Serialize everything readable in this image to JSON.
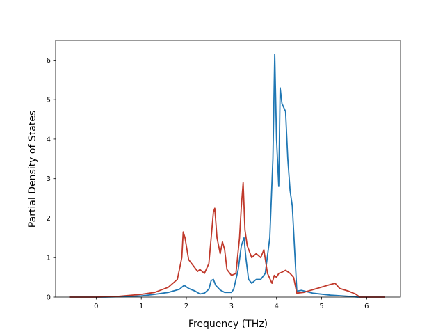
{
  "chart_data": {
    "type": "line",
    "title": "",
    "xlabel": "Frequency (THz)",
    "ylabel": "Partial Density of States",
    "xlim": [
      -0.9,
      6.75
    ],
    "ylim": [
      0,
      6.5
    ],
    "xticks": [
      0,
      1,
      2,
      3,
      4,
      5,
      6
    ],
    "yticks": [
      0,
      1,
      2,
      3,
      4,
      5,
      6
    ],
    "grid": false,
    "legend": "none",
    "series": [
      {
        "color": "#1f77b4",
        "points": [
          [
            -0.6,
            0
          ],
          [
            0.2,
            0.0
          ],
          [
            0.6,
            0.01
          ],
          [
            1.0,
            0.03
          ],
          [
            1.3,
            0.07
          ],
          [
            1.6,
            0.12
          ],
          [
            1.85,
            0.2
          ],
          [
            1.95,
            0.3
          ],
          [
            2.05,
            0.22
          ],
          [
            2.2,
            0.15
          ],
          [
            2.3,
            0.08
          ],
          [
            2.4,
            0.1
          ],
          [
            2.5,
            0.2
          ],
          [
            2.55,
            0.42
          ],
          [
            2.6,
            0.45
          ],
          [
            2.65,
            0.3
          ],
          [
            2.75,
            0.18
          ],
          [
            2.85,
            0.12
          ],
          [
            3.0,
            0.12
          ],
          [
            3.05,
            0.2
          ],
          [
            3.15,
            0.7
          ],
          [
            3.22,
            1.3
          ],
          [
            3.28,
            1.5
          ],
          [
            3.32,
            1.0
          ],
          [
            3.38,
            0.45
          ],
          [
            3.45,
            0.35
          ],
          [
            3.55,
            0.45
          ],
          [
            3.65,
            0.45
          ],
          [
            3.75,
            0.6
          ],
          [
            3.85,
            1.5
          ],
          [
            3.92,
            3.5
          ],
          [
            3.96,
            6.15
          ],
          [
            4.0,
            4.0
          ],
          [
            4.05,
            2.8
          ],
          [
            4.08,
            5.3
          ],
          [
            4.12,
            4.9
          ],
          [
            4.2,
            4.7
          ],
          [
            4.25,
            3.5
          ],
          [
            4.3,
            2.7
          ],
          [
            4.35,
            2.3
          ],
          [
            4.45,
            0.15
          ],
          [
            4.55,
            0.17
          ],
          [
            4.8,
            0.1
          ],
          [
            5.2,
            0.05
          ],
          [
            5.6,
            0.02
          ],
          [
            5.8,
            0.0
          ],
          [
            6.4,
            0
          ]
        ]
      },
      {
        "color": "#c0392b",
        "points": [
          [
            -0.6,
            0
          ],
          [
            0.0,
            0.0
          ],
          [
            0.5,
            0.02
          ],
          [
            1.0,
            0.07
          ],
          [
            1.3,
            0.12
          ],
          [
            1.6,
            0.25
          ],
          [
            1.8,
            0.45
          ],
          [
            1.9,
            1.0
          ],
          [
            1.93,
            1.65
          ],
          [
            1.97,
            1.5
          ],
          [
            2.05,
            0.95
          ],
          [
            2.15,
            0.8
          ],
          [
            2.25,
            0.65
          ],
          [
            2.3,
            0.7
          ],
          [
            2.4,
            0.6
          ],
          [
            2.5,
            0.85
          ],
          [
            2.55,
            1.5
          ],
          [
            2.6,
            2.15
          ],
          [
            2.63,
            2.25
          ],
          [
            2.68,
            1.5
          ],
          [
            2.75,
            1.1
          ],
          [
            2.8,
            1.4
          ],
          [
            2.85,
            1.2
          ],
          [
            2.9,
            0.7
          ],
          [
            3.0,
            0.55
          ],
          [
            3.1,
            0.6
          ],
          [
            3.18,
            1.5
          ],
          [
            3.22,
            2.3
          ],
          [
            3.26,
            2.9
          ],
          [
            3.3,
            1.7
          ],
          [
            3.35,
            1.3
          ],
          [
            3.45,
            1.0
          ],
          [
            3.55,
            1.1
          ],
          [
            3.65,
            1.0
          ],
          [
            3.72,
            1.2
          ],
          [
            3.8,
            0.6
          ],
          [
            3.9,
            0.35
          ],
          [
            3.95,
            0.55
          ],
          [
            4.0,
            0.5
          ],
          [
            4.05,
            0.6
          ],
          [
            4.1,
            0.62
          ],
          [
            4.2,
            0.68
          ],
          [
            4.3,
            0.6
          ],
          [
            4.38,
            0.5
          ],
          [
            4.45,
            0.1
          ],
          [
            4.6,
            0.12
          ],
          [
            4.9,
            0.22
          ],
          [
            5.2,
            0.32
          ],
          [
            5.3,
            0.35
          ],
          [
            5.4,
            0.22
          ],
          [
            5.6,
            0.15
          ],
          [
            5.75,
            0.08
          ],
          [
            5.85,
            0.0
          ],
          [
            6.4,
            0
          ]
        ]
      }
    ]
  }
}
